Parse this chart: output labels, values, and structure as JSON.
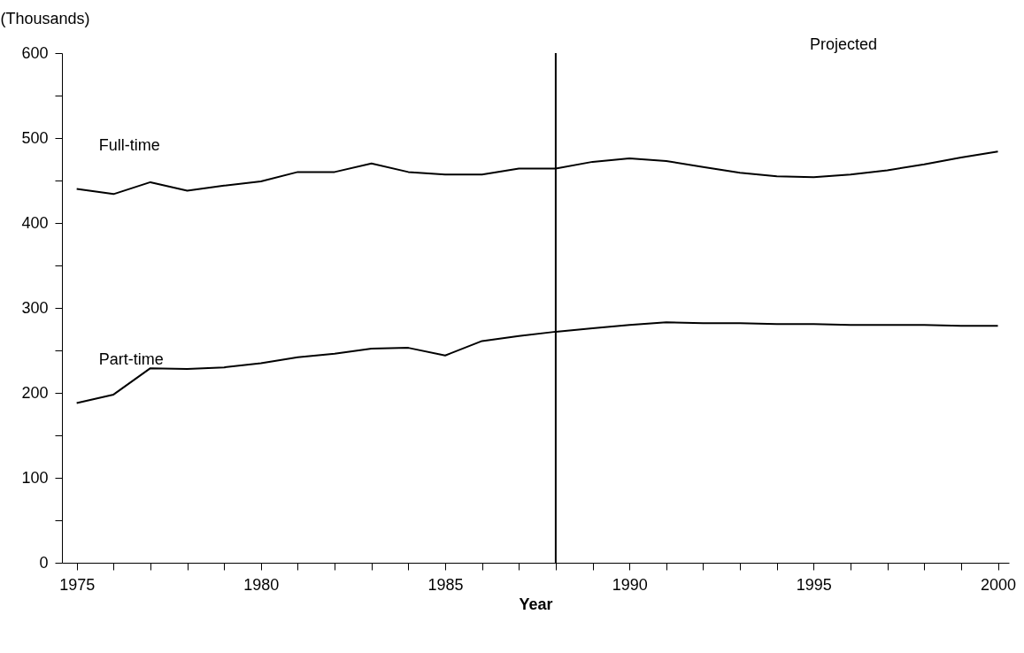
{
  "chart_data": {
    "type": "line",
    "xlabel": "Year",
    "ylabel": "(Thousands)",
    "x": [
      1975,
      1976,
      1977,
      1978,
      1979,
      1980,
      1981,
      1982,
      1983,
      1984,
      1985,
      1986,
      1987,
      1988,
      1989,
      1990,
      1991,
      1992,
      1993,
      1994,
      1995,
      1996,
      1997,
      1998,
      1999,
      2000
    ],
    "series": [
      {
        "name": "Full-time",
        "color": "#000000",
        "values": [
          440,
          434,
          448,
          438,
          444,
          449,
          460,
          460,
          470,
          460,
          457,
          457,
          464,
          464,
          472,
          476,
          473,
          466,
          459,
          455,
          454,
          457,
          462,
          469,
          477,
          484
        ]
      },
      {
        "name": "Part-time",
        "color": "#000000",
        "values": [
          188,
          198,
          229,
          228,
          230,
          235,
          242,
          246,
          252,
          253,
          244,
          261,
          267,
          272,
          276,
          280,
          283,
          282,
          282,
          281,
          281,
          280,
          280,
          280,
          279,
          279
        ]
      }
    ],
    "xlim": [
      1974.6,
      2000.3
    ],
    "ylim": [
      0,
      600
    ],
    "xticks": [
      1975,
      {
        "value": 1976,
        "label": null
      },
      {
        "value": 1977,
        "label": null
      },
      {
        "value": 1978,
        "label": null
      },
      {
        "value": 1979,
        "label": null
      },
      1980,
      {
        "value": 1981,
        "label": null
      },
      {
        "value": 1982,
        "label": null
      },
      {
        "value": 1983,
        "label": null
      },
      {
        "value": 1984,
        "label": null
      },
      1985,
      {
        "value": 1986,
        "label": null
      },
      {
        "value": 1987,
        "label": null
      },
      {
        "value": 1988,
        "label": null
      },
      {
        "value": 1989,
        "label": null
      },
      1990,
      {
        "value": 1991,
        "label": null
      },
      {
        "value": 1992,
        "label": null
      },
      {
        "value": 1993,
        "label": null
      },
      {
        "value": 1994,
        "label": null
      },
      1995,
      {
        "value": 1996,
        "label": null
      },
      {
        "value": 1997,
        "label": null
      },
      {
        "value": 1998,
        "label": null
      },
      {
        "value": 1999,
        "label": null
      },
      2000
    ],
    "yticks": [
      0,
      {
        "value": 50,
        "label": null
      },
      100,
      {
        "value": 150,
        "label": null
      },
      200,
      {
        "value": 250,
        "label": null
      },
      300,
      {
        "value": 350,
        "label": null
      },
      400,
      {
        "value": 450,
        "label": null
      },
      500,
      {
        "value": 550,
        "label": null
      },
      600
    ],
    "ref_lines": [
      {
        "axis": "x",
        "value": 1988,
        "label": null
      }
    ],
    "annotations": [
      "Projected"
    ],
    "marker": "none",
    "line_style": "solid"
  }
}
